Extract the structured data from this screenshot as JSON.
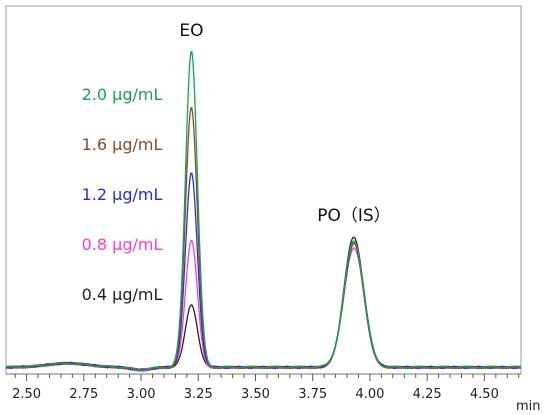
{
  "chart_data": {
    "type": "line",
    "title": "",
    "xlabel": "",
    "ylabel": "",
    "x_unit": "min",
    "xlim": [
      2.41,
      4.66
    ],
    "ylim": [
      0,
      1
    ],
    "x_ticks": [
      2.5,
      2.75,
      3.0,
      3.25,
      3.5,
      3.75,
      4.0,
      4.25,
      4.5
    ],
    "x_tick_labels": [
      "2.50",
      "2.75",
      "3.00",
      "3.25",
      "3.50",
      "3.75",
      "4.00",
      "4.25",
      "4.50"
    ],
    "grid": false,
    "peak_labels": [
      {
        "text": "EO",
        "x": 3.22
      },
      {
        "text": "PO（IS）",
        "x": 3.93
      }
    ],
    "baseline": 0.02,
    "legend_placement": "left of EO peak",
    "series": [
      {
        "name": "2.0 µg/mL",
        "color": "#1aa34a",
        "eo_peak": 0.95,
        "po_peak": 0.38
      },
      {
        "name": "1.6 µg/mL",
        "color": "#8b4a2e",
        "eo_peak": 0.78,
        "po_peak": 0.37
      },
      {
        "name": "1.2 µg/mL",
        "color": "#2230e0",
        "eo_peak": 0.58,
        "po_peak": 0.37
      },
      {
        "name": "0.8 µg/mL",
        "color": "#ff3bd3",
        "eo_peak": 0.38,
        "po_peak": 0.36
      },
      {
        "name": "0.4 µg/mL",
        "color": "#222222",
        "eo_peak": 0.19,
        "po_peak": 0.39
      }
    ]
  }
}
